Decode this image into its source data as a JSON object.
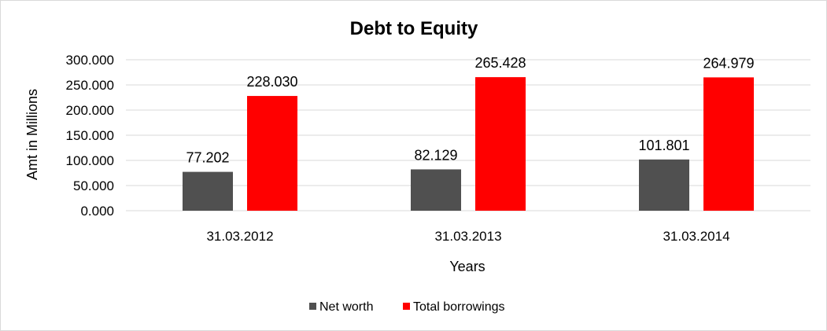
{
  "chart_data": {
    "type": "bar",
    "title": "Debt to Equity",
    "xlabel": "Years",
    "ylabel": "Amt in Millions",
    "categories": [
      "31.03.2012",
      "31.03.2013",
      "31.03.2014"
    ],
    "series": [
      {
        "name": "Net worth",
        "values": [
          77.202,
          82.129,
          101.801
        ],
        "labels": [
          "77.202",
          "82.129",
          "101.801"
        ],
        "color": "#505050"
      },
      {
        "name": "Total borrowings",
        "values": [
          228.03,
          265.428,
          264.979
        ],
        "labels": [
          "228.030",
          "265.428",
          "264.979"
        ],
        "color": "#ff0000"
      }
    ],
    "ylim": [
      0,
      300
    ],
    "yticks": [
      0,
      50,
      100,
      150,
      200,
      250,
      300
    ],
    "ytick_labels": [
      "0.000",
      "50.000",
      "100.000",
      "150.000",
      "200.000",
      "250.000",
      "300.000"
    ],
    "grid": true,
    "legend_position": "bottom"
  }
}
